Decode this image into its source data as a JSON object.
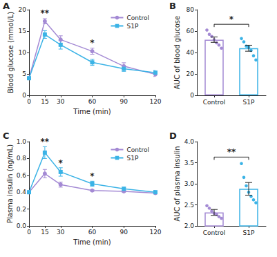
{
  "chart_data": [
    {
      "panel": "A",
      "type": "line",
      "x": [
        0,
        15,
        30,
        60,
        90,
        120
      ],
      "xlim": [
        0,
        120
      ],
      "xticks": [
        0,
        15,
        30,
        60,
        90,
        120
      ],
      "ylim": [
        0,
        20
      ],
      "yticks": [
        0,
        5,
        10,
        15,
        20
      ],
      "x_label": "Time (min)",
      "y_label": "Blood glucose (mmol/L)",
      "grid": false,
      "legend": "upper right",
      "series": [
        {
          "name": "Control",
          "color": "#a48ad4",
          "marker": "circle",
          "values": [
            4.0,
            17.3,
            13.0,
            10.3,
            6.8,
            4.9
          ],
          "errors": [
            0.3,
            0.6,
            0.9,
            0.7,
            0.8,
            0.5
          ]
        },
        {
          "name": "S1P",
          "color": "#3bb3e6",
          "marker": "square",
          "values": [
            4.0,
            14.2,
            11.8,
            7.7,
            6.2,
            5.3
          ],
          "errors": [
            0.3,
            0.9,
            1.0,
            0.7,
            0.6,
            0.5
          ]
        }
      ],
      "annotations": [
        {
          "text": "**",
          "x": 15,
          "y": 18.3
        },
        {
          "text": "*",
          "x": 60,
          "y": 11.3
        }
      ]
    },
    {
      "panel": "B",
      "type": "bar",
      "categories": [
        "Control",
        "S1P"
      ],
      "values": [
        52,
        44
      ],
      "errors": [
        2.5,
        2.8
      ],
      "colors": [
        "#a48ad4",
        "#3bb3e6"
      ],
      "points": [
        [
          61,
          57,
          55,
          52,
          49,
          47,
          44
        ],
        [
          53,
          50,
          46,
          45,
          42,
          37,
          33
        ]
      ],
      "ylim": [
        0,
        80
      ],
      "yticks": [
        0,
        20,
        40,
        60,
        80
      ],
      "y_label": "AUC of blood glucose",
      "grid": false,
      "annotations": [
        {
          "text": "*",
          "y": 67
        }
      ]
    },
    {
      "panel": "C",
      "type": "line",
      "x": [
        0,
        15,
        30,
        60,
        90,
        120
      ],
      "xlim": [
        0,
        120
      ],
      "xticks": [
        0,
        15,
        30,
        60,
        90,
        120
      ],
      "ylim": [
        0,
        1.0
      ],
      "yticks": [
        {
          "value": 0,
          "label": "0.0"
        },
        0.2,
        0.4,
        0.6,
        0.8,
        {
          "value": 1,
          "label": "1.0"
        }
      ],
      "x_label": "Time (min)",
      "y_label": "Plasma insulin (ng/mL)",
      "grid": false,
      "legend": "upper right",
      "series": [
        {
          "name": "Control",
          "color": "#a48ad4",
          "marker": "circle",
          "values": [
            0.4,
            0.62,
            0.49,
            0.42,
            0.41,
            0.39
          ],
          "errors": [
            0.01,
            0.05,
            0.03,
            0.01,
            0.01,
            0.01
          ]
        },
        {
          "name": "S1P",
          "color": "#3bb3e6",
          "marker": "square",
          "values": [
            0.4,
            0.87,
            0.64,
            0.5,
            0.44,
            0.4
          ],
          "errors": [
            0.01,
            0.07,
            0.05,
            0.03,
            0.02,
            0.02
          ]
        }
      ],
      "annotations": [
        {
          "text": "**",
          "x": 15,
          "y": 0.95
        },
        {
          "text": "*",
          "x": 30,
          "y": 0.7
        },
        {
          "text": "*",
          "x": 60,
          "y": 0.54
        }
      ]
    },
    {
      "panel": "D",
      "type": "bar",
      "categories": [
        "Control",
        "S1P"
      ],
      "values": [
        2.32,
        2.88
      ],
      "errors": [
        0.07,
        0.15
      ],
      "colors": [
        "#a48ad4",
        "#3bb3e6"
      ],
      "points": [
        [
          2.48,
          2.42,
          2.35,
          2.3,
          2.27,
          2.22,
          2.18
        ],
        [
          3.48,
          3.15,
          2.95,
          2.8,
          2.7,
          2.62,
          2.55
        ]
      ],
      "ylim": [
        2.0,
        4.0
      ],
      "yticks": [
        {
          "value": 2,
          "label": "2.0"
        },
        2.5,
        {
          "value": 3,
          "label": "3.0"
        },
        3.5,
        {
          "value": 4,
          "label": "4.0"
        }
      ],
      "y_label": "AUC of plasma insulin",
      "grid": false,
      "annotations": [
        {
          "text": "**",
          "y": 3.65
        }
      ]
    }
  ]
}
